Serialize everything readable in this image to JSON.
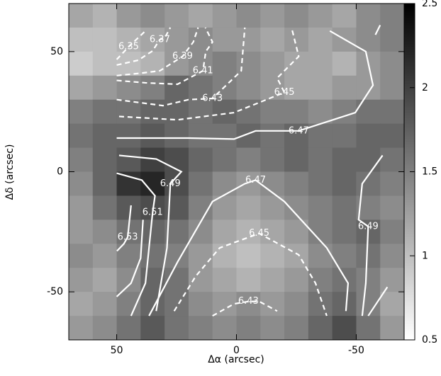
{
  "chart_data": {
    "type": "heatmap",
    "xlabel": "Δα  (arcsec)",
    "ylabel": "Δδ (arcsec)",
    "xlim": [
      70,
      -70
    ],
    "ylim": [
      -70,
      70
    ],
    "xticks": [
      50,
      0,
      -50
    ],
    "yticks": [
      -50,
      0,
      50
    ],
    "clim": [
      0.5,
      2.5
    ],
    "cticks": [
      0.5,
      1,
      1.5,
      2,
      2.5
    ],
    "x": [
      65,
      55,
      45,
      35,
      25,
      15,
      5,
      -5,
      -15,
      -25,
      -35,
      -45,
      -55,
      -65
    ],
    "y": [
      65,
      55,
      45,
      35,
      25,
      15,
      5,
      -5,
      -15,
      -25,
      -35,
      -45,
      -55,
      -65
    ],
    "z": [
      [
        1.2,
        1.1,
        1.3,
        1.4,
        1.3,
        1.2,
        1.3,
        1.4,
        1.3,
        1.4,
        1.3,
        1.2,
        1.4,
        1.5
      ],
      [
        1.0,
        1.0,
        1.1,
        1.2,
        1.3,
        1.4,
        1.3,
        1.3,
        1.2,
        1.3,
        1.2,
        1.3,
        1.4,
        1.5
      ],
      [
        0.9,
        1.0,
        1.0,
        1.1,
        1.3,
        1.4,
        1.5,
        1.4,
        1.3,
        1.2,
        1.2,
        1.1,
        1.3,
        1.4
      ],
      [
        1.2,
        1.3,
        1.4,
        1.5,
        1.7,
        1.6,
        1.5,
        1.4,
        1.3,
        1.2,
        1.2,
        1.3,
        1.3,
        1.4
      ],
      [
        1.5,
        1.6,
        1.6,
        1.7,
        1.7,
        1.6,
        1.7,
        1.6,
        1.5,
        1.5,
        1.4,
        1.5,
        1.6,
        1.6
      ],
      [
        1.6,
        1.7,
        1.7,
        1.8,
        1.7,
        1.6,
        1.6,
        1.7,
        1.6,
        1.7,
        1.6,
        1.6,
        1.7,
        1.7
      ],
      [
        1.5,
        1.7,
        1.8,
        2.0,
        1.9,
        1.7,
        1.6,
        1.5,
        1.6,
        1.7,
        1.6,
        1.7,
        1.7,
        1.6
      ],
      [
        1.4,
        1.7,
        2.1,
        2.2,
        1.9,
        1.6,
        1.4,
        1.3,
        1.4,
        1.5,
        1.6,
        1.7,
        1.6,
        1.5
      ],
      [
        1.3,
        1.6,
        1.8,
        1.9,
        1.8,
        1.5,
        1.3,
        1.2,
        1.3,
        1.4,
        1.5,
        1.6,
        1.5,
        1.4
      ],
      [
        1.3,
        1.4,
        1.6,
        1.7,
        1.6,
        1.4,
        1.2,
        1.1,
        1.2,
        1.3,
        1.5,
        1.6,
        1.7,
        1.5
      ],
      [
        1.4,
        1.3,
        1.5,
        1.6,
        1.5,
        1.3,
        1.1,
        1.0,
        1.1,
        1.2,
        1.4,
        1.5,
        1.6,
        1.4
      ],
      [
        1.3,
        1.2,
        1.4,
        1.7,
        1.6,
        1.3,
        1.2,
        1.1,
        1.2,
        1.3,
        1.5,
        1.6,
        1.5,
        1.3
      ],
      [
        1.2,
        1.3,
        1.5,
        1.7,
        1.6,
        1.4,
        1.3,
        1.4,
        1.3,
        1.4,
        1.6,
        1.7,
        1.5,
        1.2
      ],
      [
        1.3,
        1.4,
        1.6,
        1.8,
        1.6,
        1.5,
        1.4,
        1.5,
        1.4,
        1.5,
        1.7,
        1.9,
        1.6,
        1.3
      ]
    ],
    "contours": [
      {
        "level": 6.35,
        "dashed": true,
        "pieces": [
          {
            "x": [
              50,
              45,
              38
            ],
            "y": [
              46.7,
              52,
              58.6
            ]
          }
        ]
      },
      {
        "level": 6.37,
        "dashed": true,
        "pieces": [
          {
            "x": [
              50,
              41,
              35,
              32,
              30,
              27.6
            ],
            "y": [
              44.4,
              46.4,
              50.3,
              55,
              55.6,
              60
            ]
          }
        ]
      },
      {
        "level": 6.39,
        "dashed": true,
        "pieces": [
          {
            "x": [
              50,
              40,
              32,
              22.5,
              18,
              16
            ],
            "y": [
              40,
              41,
              42,
              48,
              54,
              60
            ]
          }
        ]
      },
      {
        "level": 6.41,
        "dashed": true,
        "pieces": [
          {
            "x": [
              50,
              38,
              24.6,
              14,
              12.8,
              10,
              13
            ],
            "y": [
              38,
              37,
              36.4,
              42,
              50,
              54,
              60
            ]
          }
        ]
      },
      {
        "level": 6.43,
        "dashed": true,
        "pieces": [
          {
            "x": [
              50,
              30.6,
              20,
              10,
              -2,
              -3.5
            ],
            "y": [
              30,
              27.5,
              30,
              30.5,
              42,
              60
            ]
          }
        ]
      },
      {
        "level": 6.45,
        "dashed": true,
        "pieces": [
          {
            "x": [
              49,
              24.6,
              1,
              -20,
              -17,
              -26,
              -23
            ],
            "y": [
              23,
              21.6,
              24.6,
              33,
              39,
              48,
              60
            ]
          }
        ]
      },
      {
        "level": 6.47,
        "dashed": false,
        "pieces": [
          {
            "x": [
              50,
              20,
              1,
              -8,
              -26,
              -49.6,
              -57,
              -54,
              -39
            ],
            "y": [
              14,
              14,
              13.6,
              17,
              17,
              24.6,
              36,
              50,
              58.6
            ]
          },
          {
            "x": [
              -58,
              -60
            ],
            "y": [
              57,
              61
            ]
          }
        ]
      },
      {
        "level": 6.49,
        "dashed": false,
        "pieces": [
          {
            "x": [
              49,
              33.5,
              23,
              27.6,
              29,
              33.5
            ],
            "y": [
              6.8,
              5.3,
              0,
              -5,
              -31.7,
              -58
            ]
          }
        ]
      },
      {
        "level": 6.51,
        "dashed": false,
        "pieces": [
          {
            "x": [
              50,
              39.5,
              34,
              35,
              38,
              44
            ],
            "y": [
              -0.6,
              -3.5,
              -10,
              -17,
              -46.4,
              -60
            ]
          },
          {
            "x": [
              50,
              44,
              40,
              39
            ],
            "y": [
              -52,
              -46.4,
              -36,
              -20
            ]
          }
        ]
      },
      {
        "level": 6.53,
        "dashed": false,
        "pieces": [
          {
            "x": [
              49.9,
              47,
              45.4,
              44
            ],
            "y": [
              -33,
              -30,
              -27.2,
              -14
            ]
          }
        ]
      },
      {
        "level": 6.47,
        "dashed": false,
        "pieces": [
          {
            "x": [
              36.5,
              24.6,
              10,
              -3.5,
              -8,
              -20,
              -37.7,
              -46.6,
              -45.7
            ],
            "y": [
              -60,
              -37.6,
              -12.4,
              -5,
              -3.5,
              -12.4,
              -31.7,
              -46.4,
              -58
            ]
          }
        ]
      },
      {
        "level": 6.45,
        "dashed": true,
        "pieces": [
          {
            "x": [
              26,
              17,
              7,
              -9.5,
              -26,
              -33,
              -37.7
            ],
            "y": [
              -58,
              -43.5,
              -31.7,
              -25.7,
              -34.6,
              -46.4,
              -60
            ]
          }
        ]
      },
      {
        "level": 6.43,
        "dashed": true,
        "pieces": [
          {
            "x": [
              10,
              1,
              -5,
              -9.5,
              -17
            ],
            "y": [
              -60,
              -55,
              -54,
              -54,
              -58
            ]
          }
        ]
      },
      {
        "level": 6.49,
        "dashed": false,
        "pieces": [
          {
            "x": [
              -61,
              -52.5,
              -51,
              -55,
              -54,
              -52.5
            ],
            "y": [
              6.8,
              -5,
              -20,
              -22.8,
              -46.4,
              -60
            ]
          },
          {
            "x": [
              -63,
              -55
            ],
            "y": [
              -48,
              -60
            ]
          }
        ]
      }
    ]
  }
}
